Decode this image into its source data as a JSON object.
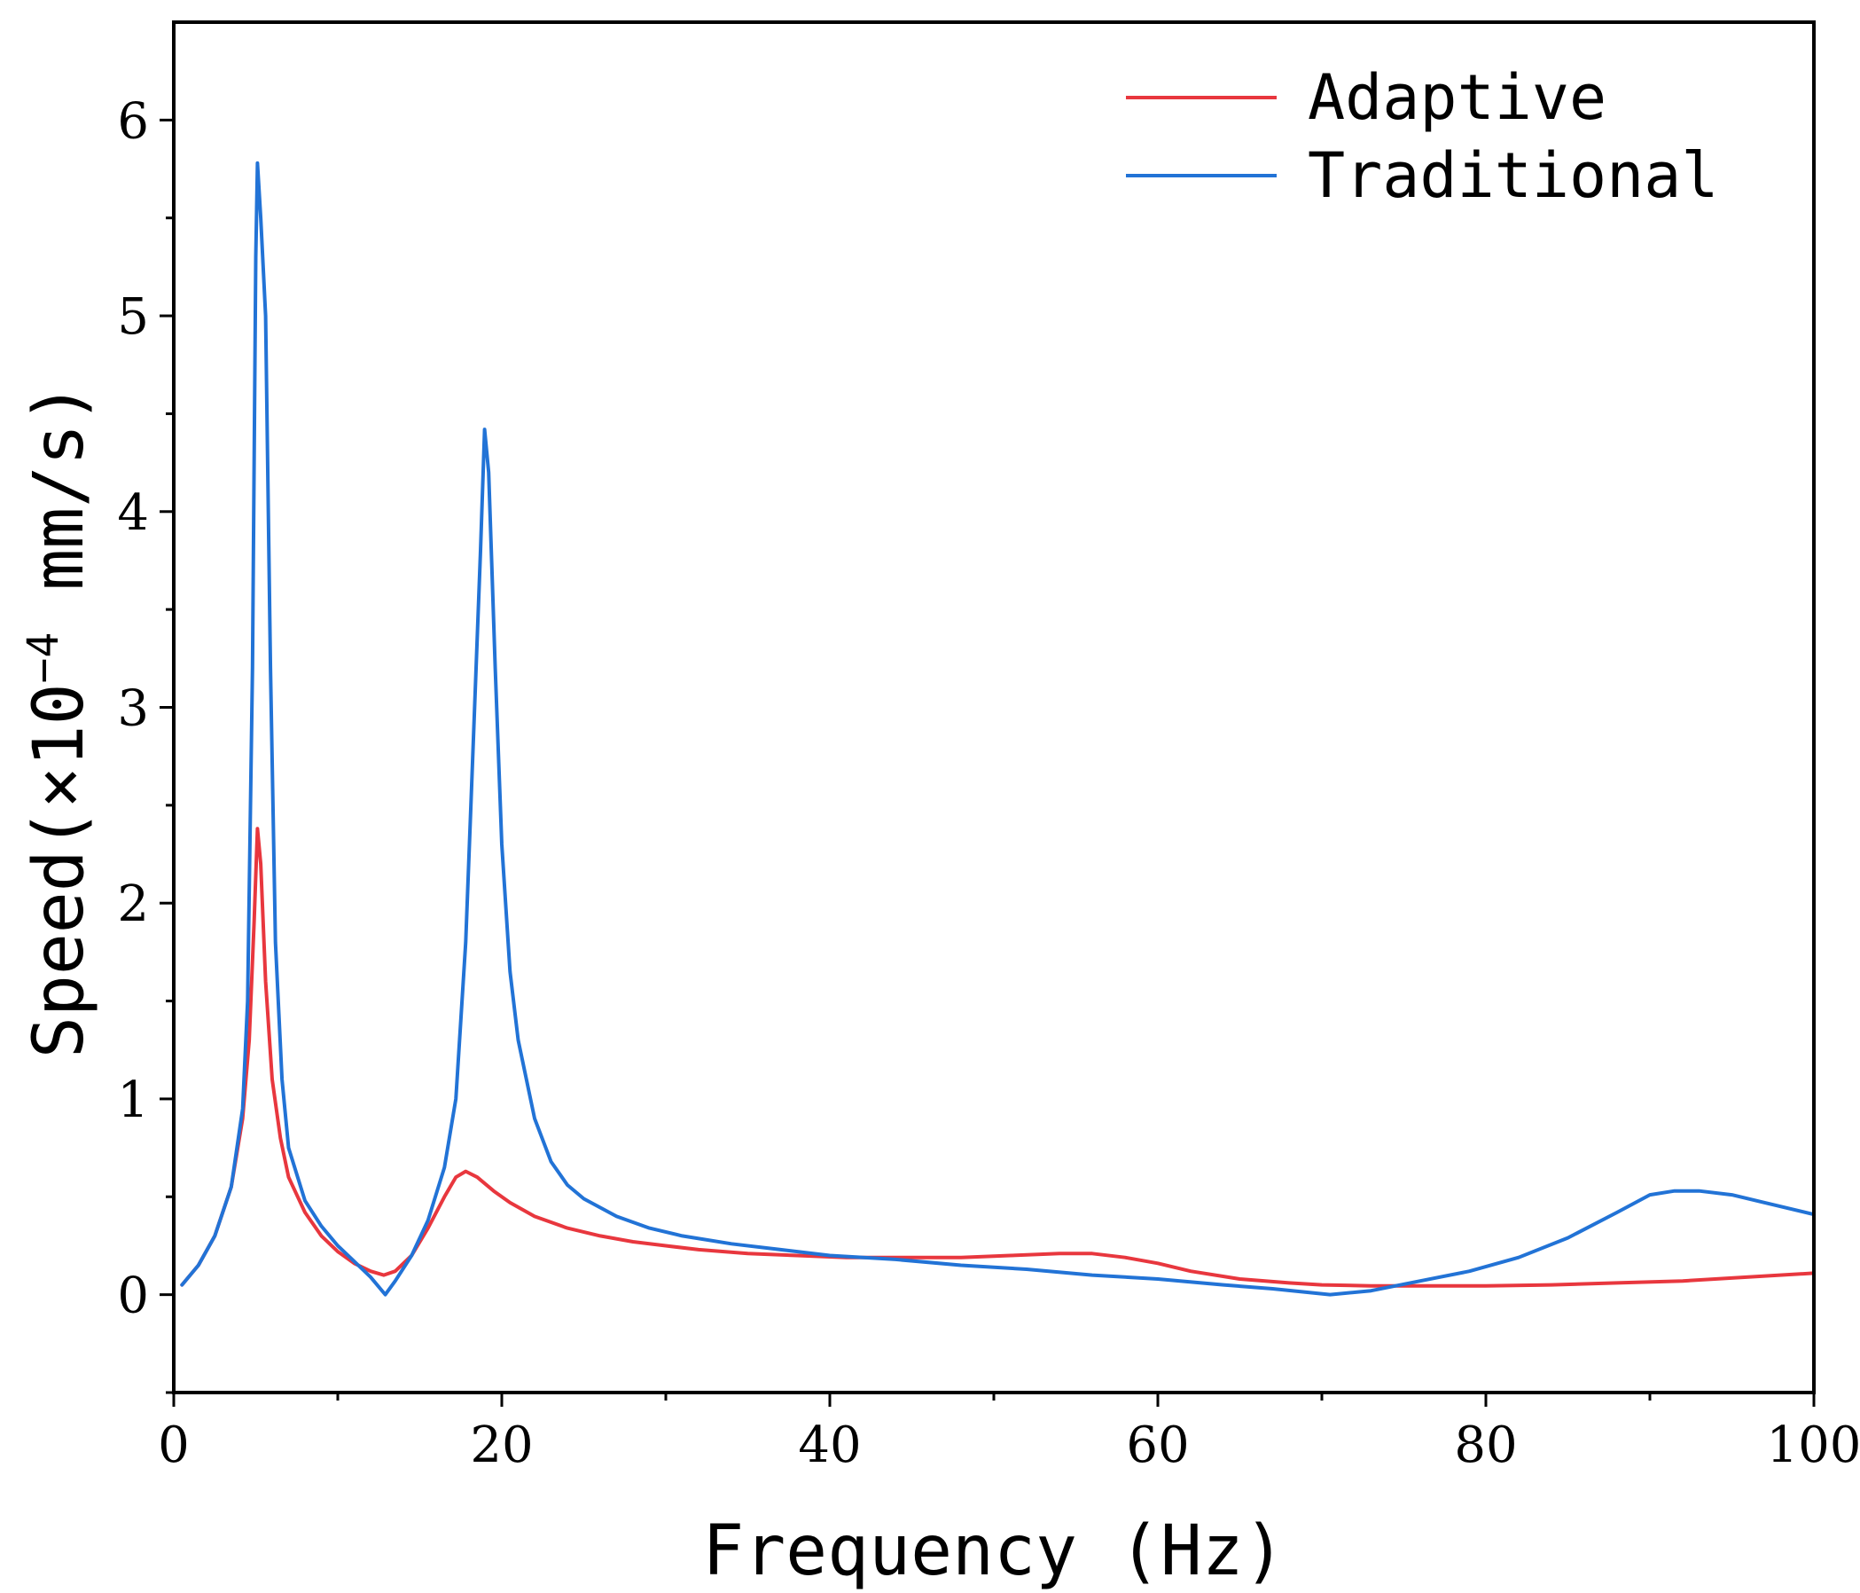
{
  "chart_data": {
    "type": "line",
    "title": "",
    "xlabel": "Frequency (Hz)",
    "ylabel_main": "Speed(×10",
    "ylabel_exp": "−4",
    "ylabel_unit": " mm/s)",
    "xlim": [
      0,
      100
    ],
    "ylim": [
      -0.5,
      6.5
    ],
    "x_ticks": [
      0,
      20,
      40,
      60,
      80,
      100
    ],
    "x_tick_labels": [
      "0",
      "20",
      "40",
      "60",
      "80",
      "100"
    ],
    "x_minor_ticks": [
      10,
      30,
      50,
      70,
      90
    ],
    "y_ticks": [
      0,
      1,
      2,
      3,
      4,
      5,
      6
    ],
    "y_tick_labels": [
      "0",
      "1",
      "2",
      "3",
      "4",
      "5",
      "6"
    ],
    "y_minor_ticks": [
      -0.5,
      0.5,
      1.5,
      2.5,
      3.5,
      4.5,
      5.5
    ],
    "grid": false,
    "legend_position": "top-right",
    "series": [
      {
        "name": "Adaptive",
        "color": "#e8373e",
        "points": [
          [
            0.5,
            0.05
          ],
          [
            1.5,
            0.15
          ],
          [
            2.5,
            0.3
          ],
          [
            3.5,
            0.55
          ],
          [
            4.2,
            0.9
          ],
          [
            4.6,
            1.3
          ],
          [
            4.9,
            1.9
          ],
          [
            5.1,
            2.38
          ],
          [
            5.3,
            2.2
          ],
          [
            5.6,
            1.6
          ],
          [
            6,
            1.1
          ],
          [
            6.5,
            0.8
          ],
          [
            7,
            0.6
          ],
          [
            8,
            0.42
          ],
          [
            9,
            0.3
          ],
          [
            10,
            0.22
          ],
          [
            11,
            0.16
          ],
          [
            12,
            0.12
          ],
          [
            12.8,
            0.1
          ],
          [
            13.5,
            0.12
          ],
          [
            14.5,
            0.2
          ],
          [
            15.5,
            0.34
          ],
          [
            16.5,
            0.5
          ],
          [
            17.2,
            0.6
          ],
          [
            17.8,
            0.63
          ],
          [
            18.5,
            0.6
          ],
          [
            19.5,
            0.53
          ],
          [
            20.5,
            0.47
          ],
          [
            22,
            0.4
          ],
          [
            24,
            0.34
          ],
          [
            26,
            0.3
          ],
          [
            28,
            0.27
          ],
          [
            30,
            0.25
          ],
          [
            32,
            0.23
          ],
          [
            35,
            0.21
          ],
          [
            38,
            0.2
          ],
          [
            41,
            0.19
          ],
          [
            45,
            0.19
          ],
          [
            48,
            0.19
          ],
          [
            51,
            0.2
          ],
          [
            54,
            0.21
          ],
          [
            56,
            0.21
          ],
          [
            58,
            0.19
          ],
          [
            60,
            0.16
          ],
          [
            62,
            0.12
          ],
          [
            65,
            0.08
          ],
          [
            68,
            0.06
          ],
          [
            70,
            0.05
          ],
          [
            73,
            0.045
          ],
          [
            76,
            0.045
          ],
          [
            80,
            0.045
          ],
          [
            84,
            0.05
          ],
          [
            88,
            0.06
          ],
          [
            92,
            0.07
          ],
          [
            96,
            0.09
          ],
          [
            100,
            0.11
          ]
        ]
      },
      {
        "name": "Traditional",
        "color": "#2273d6",
        "points": [
          [
            0.5,
            0.05
          ],
          [
            1.5,
            0.15
          ],
          [
            2.5,
            0.3
          ],
          [
            3.5,
            0.55
          ],
          [
            4.2,
            0.95
          ],
          [
            4.5,
            1.5
          ],
          [
            4.8,
            3.2
          ],
          [
            5.0,
            5.3
          ],
          [
            5.1,
            5.78
          ],
          [
            5.3,
            5.5
          ],
          [
            5.6,
            5.0
          ],
          [
            5.9,
            3.2
          ],
          [
            6.2,
            1.8
          ],
          [
            6.6,
            1.1
          ],
          [
            7,
            0.75
          ],
          [
            8,
            0.48
          ],
          [
            9,
            0.35
          ],
          [
            10,
            0.25
          ],
          [
            11,
            0.17
          ],
          [
            12,
            0.09
          ],
          [
            12.9,
            0.0
          ],
          [
            13.5,
            0.07
          ],
          [
            14.5,
            0.2
          ],
          [
            15.5,
            0.38
          ],
          [
            16.5,
            0.65
          ],
          [
            17.2,
            1.0
          ],
          [
            17.8,
            1.8
          ],
          [
            18.3,
            2.9
          ],
          [
            18.7,
            3.8
          ],
          [
            18.95,
            4.42
          ],
          [
            19.2,
            4.2
          ],
          [
            19.6,
            3.2
          ],
          [
            20,
            2.3
          ],
          [
            20.5,
            1.65
          ],
          [
            21,
            1.3
          ],
          [
            22,
            0.9
          ],
          [
            23,
            0.68
          ],
          [
            24,
            0.56
          ],
          [
            25,
            0.49
          ],
          [
            27,
            0.4
          ],
          [
            29,
            0.34
          ],
          [
            31,
            0.3
          ],
          [
            34,
            0.26
          ],
          [
            37,
            0.23
          ],
          [
            40,
            0.2
          ],
          [
            44,
            0.18
          ],
          [
            48,
            0.15
          ],
          [
            52,
            0.13
          ],
          [
            56,
            0.1
          ],
          [
            60,
            0.08
          ],
          [
            64,
            0.05
          ],
          [
            67,
            0.03
          ],
          [
            70.5,
            0.0
          ],
          [
            73,
            0.02
          ],
          [
            76,
            0.07
          ],
          [
            79,
            0.12
          ],
          [
            82,
            0.19
          ],
          [
            85,
            0.29
          ],
          [
            88,
            0.42
          ],
          [
            90,
            0.51
          ],
          [
            91.5,
            0.53
          ],
          [
            93,
            0.53
          ],
          [
            95,
            0.51
          ],
          [
            97,
            0.47
          ],
          [
            100,
            0.41
          ]
        ]
      }
    ]
  }
}
